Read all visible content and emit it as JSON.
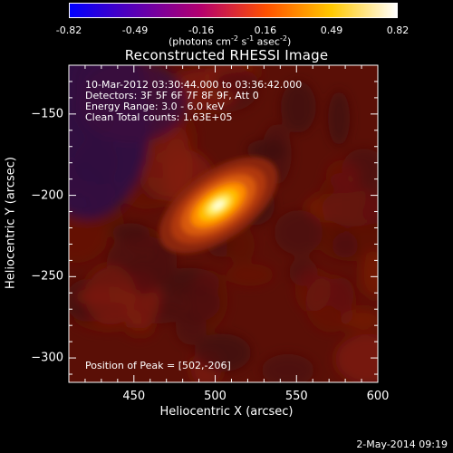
{
  "chart_data": {
    "type": "heatmap",
    "title": "Reconstructed RHESSI Image",
    "xlabel": "Heliocentric X (arcsec)",
    "ylabel": "Heliocentric Y (arcsec)",
    "xlim": [
      410,
      600
    ],
    "ylim": [
      -315,
      -120
    ],
    "x_ticks": [
      "450",
      "500",
      "550",
      "600"
    ],
    "x_tick_values": [
      450,
      500,
      550,
      600
    ],
    "y_ticks": [
      "-150",
      "-200",
      "-250",
      "-300"
    ],
    "y_tick_values": [
      -150,
      -200,
      -250,
      -300
    ],
    "colorbar": {
      "ticks": [
        "-0.82",
        "-0.49",
        "-0.16",
        "0.16",
        "0.49",
        "0.82"
      ],
      "tick_values": [
        -0.82,
        -0.49,
        -0.16,
        0.16,
        0.49,
        0.82
      ],
      "range": [
        -0.82,
        0.82
      ],
      "units_main": "(photons cm",
      "units_exp1": "-2",
      "units_mid": " s",
      "units_exp2": "-1",
      "units_tail": " asec",
      "units_exp3": "-2",
      "units_close": ")",
      "colors": [
        "#0000ff",
        "#5a00b4",
        "#b4006e",
        "#ff5000",
        "#ffc800",
        "#ffffff"
      ]
    },
    "source": {
      "peak_x": 502,
      "peak_y": -206,
      "peak_value": 0.82,
      "sigma_major": 14,
      "sigma_minor": 7,
      "angle_deg": 35
    },
    "background_level": 0.05
  },
  "annotations": {
    "time_range": "10-Mar-2012 03:30:44.000 to 03:36:42.000",
    "detectors": "Detectors: 3F 5F 6F 7F 8F 9F, Att 0",
    "energy": "Energy Range: 3.0 - 6.0 keV",
    "clean": "Clean    Total counts: 1.63E+05",
    "peak": "Position of Peak = [502,-206]"
  },
  "stamp": "2-May-2014 09:19"
}
